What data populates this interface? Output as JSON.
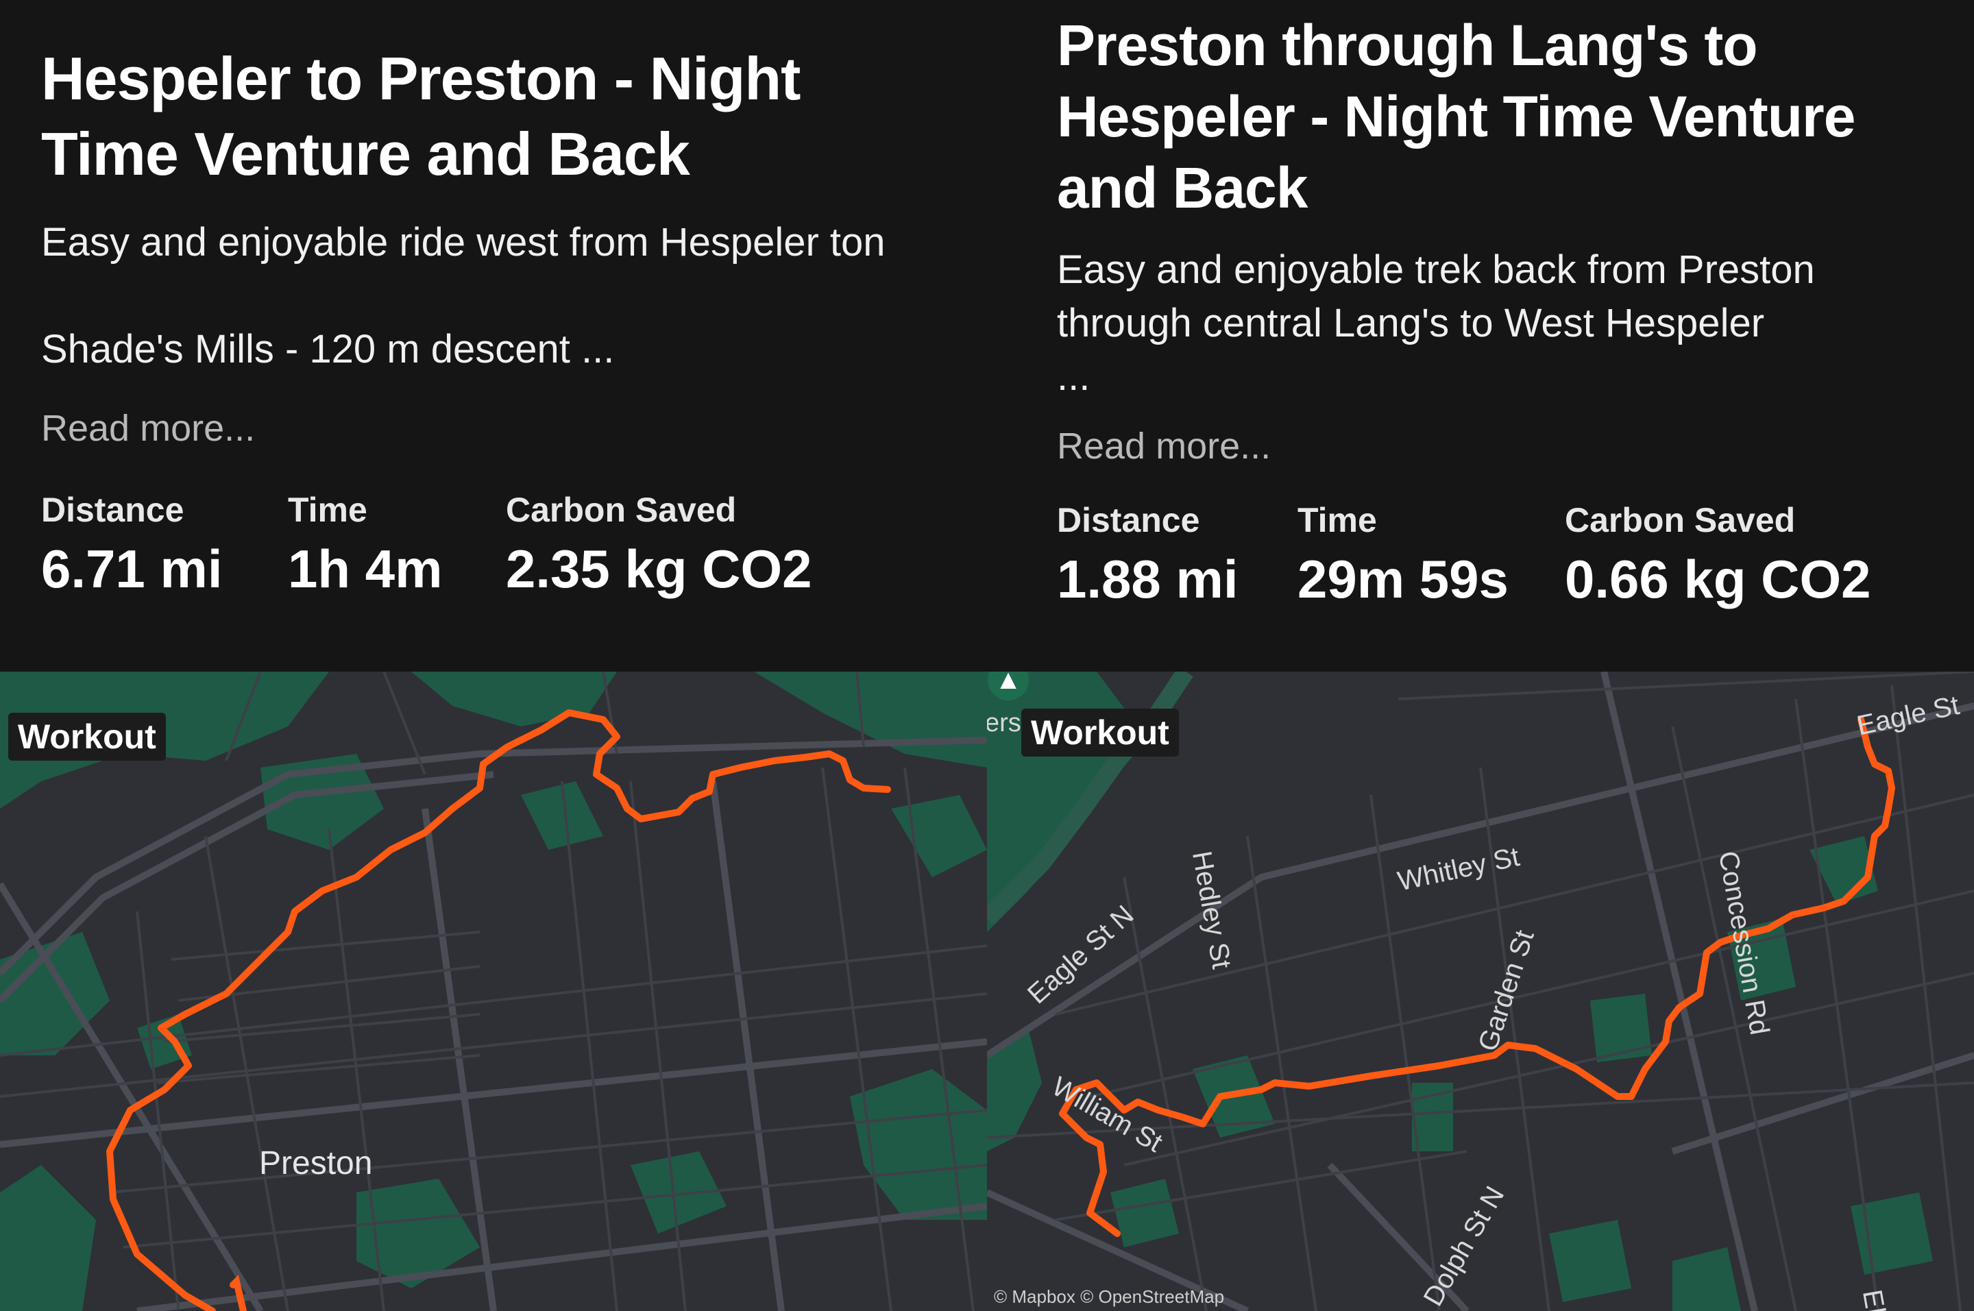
{
  "colors": {
    "background": "#151515",
    "route": "#ff5a14",
    "map_base": "#2e3036",
    "park": "#1f5a47",
    "badge": "#1c1c1c"
  },
  "cards": [
    {
      "title_lines": [
        "Hespeler to Preston - Night",
        "Time Venture and Back"
      ],
      "desc_lines": [
        "Easy and enjoyable ride west from Hespeler ton",
        "",
        "Shade's Mills - 120 m descent ..."
      ],
      "read_more": "Read more...",
      "stats": [
        {
          "label": "Distance",
          "value": "6.71 mi"
        },
        {
          "label": "Time",
          "value": "1h 4m"
        },
        {
          "label": "Carbon Saved",
          "value": "2.35 kg CO2"
        }
      ],
      "map": {
        "badge": "Workout",
        "place_label": "Preston",
        "streets": []
      }
    },
    {
      "title_lines": [
        "Preston through Lang's to",
        "Hespeler - Night Time Venture",
        "and Back"
      ],
      "desc_lines": [
        "Easy and enjoyable trek back from Preston",
        "through central Lang's to West Hespeler",
        "..."
      ],
      "read_more": "Read more...",
      "stats": [
        {
          "label": "Distance",
          "value": "1.88 mi"
        },
        {
          "label": "Time",
          "value": "29m 59s"
        },
        {
          "label": "Carbon Saved",
          "value": "0.66 kg CO2"
        }
      ],
      "map": {
        "badge": "Workout",
        "badge_prefix": "ers",
        "streets": [
          "Eagle St N",
          "Whitley St",
          "Hedley St",
          "Garden St",
          "Concession Rd",
          "Eagle St",
          "William St",
          "Dolph St N",
          "Ell"
        ],
        "attribution": "© Mapbox © OpenStreetMap"
      }
    }
  ]
}
